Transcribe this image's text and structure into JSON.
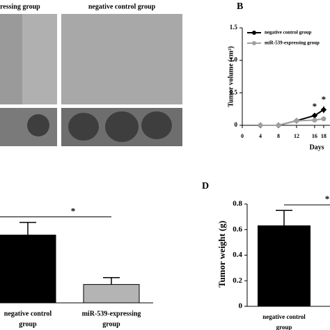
{
  "panel_a": {
    "labels": [
      "ressing group",
      "negative control group"
    ]
  },
  "chart_data": [
    {
      "type": "line",
      "label": "B",
      "y_label": "Tumor volume (cm³)",
      "x_label": "Days",
      "xlim": [
        0,
        19.4
      ],
      "xticks": [
        0,
        4,
        8,
        12,
        16,
        18
      ],
      "ylim": [
        0,
        1.5
      ],
      "yticks": [
        0,
        0.5,
        {
          "value": 1,
          "label": "1.0"
        },
        1.5
      ],
      "x": [
        4,
        8,
        12,
        16,
        18
      ],
      "series": [
        {
          "name": "negative control group",
          "color": "#000000",
          "values": [
            0,
            0,
            0.07,
            0.15,
            0.24
          ],
          "errors": [
            0,
            0,
            0.02,
            0.03,
            0.05
          ]
        },
        {
          "name": "miR-539-expressing group",
          "color": "#a0a0a0",
          "values": [
            0,
            0,
            0.07,
            0.08,
            0.1
          ],
          "errors": [
            0,
            0,
            0.02,
            0.02,
            0.03
          ]
        }
      ],
      "annotations": [
        "*",
        "*"
      ]
    },
    {
      "type": "bar",
      "categories": [
        [
          "negative control",
          "group"
        ],
        [
          "miR-539-expressing",
          "group"
        ]
      ],
      "ylim": [
        0,
        1
      ],
      "values": [
        0.59,
        0.16
      ],
      "errors": [
        0.11,
        0.06
      ],
      "colors": [
        "#000000",
        "#b4b4b4"
      ],
      "annotations": [
        "*"
      ]
    },
    {
      "type": "bar",
      "label": "D",
      "y_label": "Tumor weight (g)",
      "categories": [
        [
          "negative control",
          "group"
        ]
      ],
      "ylim": [
        0,
        0.8
      ],
      "yticks": [
        0,
        0.2,
        0.4,
        0.6,
        0.8
      ],
      "values": [
        0.63
      ],
      "errors": [
        0.12
      ],
      "colors": [
        "#000000"
      ],
      "annotations": [
        "*"
      ]
    }
  ]
}
